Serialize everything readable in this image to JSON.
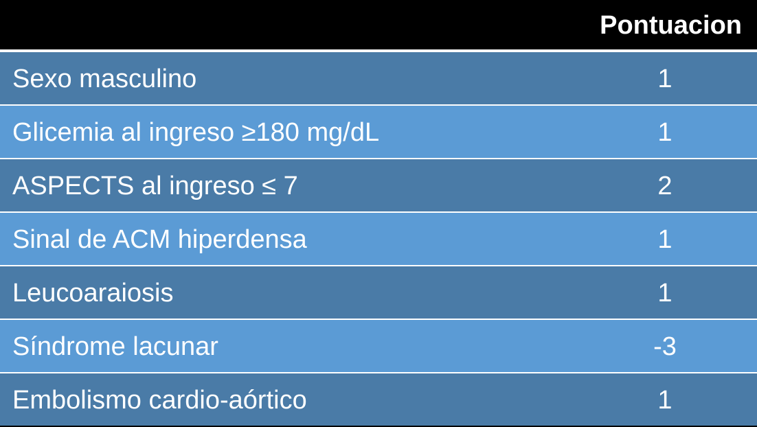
{
  "table": {
    "header": {
      "label": "",
      "score": "Pontuacion"
    },
    "rows": [
      {
        "label": "Sexo masculino",
        "score": "1"
      },
      {
        "label": "Glicemia al ingreso ≥180 mg/dL",
        "score": "1"
      },
      {
        "label": "ASPECTS al ingreso ≤ 7",
        "score": "2"
      },
      {
        "label": "Sinal de ACM hiperdensa",
        "score": "1"
      },
      {
        "label": "Leucoaraiosis",
        "score": "1"
      },
      {
        "label": "Síndrome lacunar",
        "score": "-3"
      },
      {
        "label": "Embolismo cardio-aórtico",
        "score": "1"
      }
    ],
    "colors": {
      "header_bg": "#000000",
      "row_dark": "#4a7ba7",
      "row_light": "#5b9bd5",
      "text": "#ffffff"
    }
  }
}
